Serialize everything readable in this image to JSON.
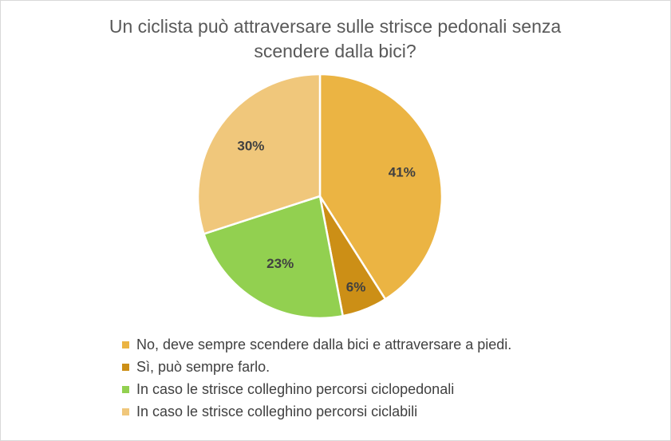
{
  "chart_data": {
    "type": "pie",
    "title_lines": [
      "Un ciclista può attraversare sulle strisce pedonali senza",
      "scendere dalla bici?"
    ],
    "slices": [
      {
        "label": "No, deve sempre scendere dalla bici e attraversare a piedi.",
        "value": 41,
        "display": "41%",
        "color": "#EBB443"
      },
      {
        "label": "Sì, può sempre farlo.",
        "value": 6,
        "display": "6%",
        "color": "#CC8F16"
      },
      {
        "label": "In caso le strisce colleghino percorsi ciclopedonali",
        "value": 23,
        "display": "23%",
        "color": "#92D050"
      },
      {
        "label": "In caso le strisce colleghino percorsi ciclabili",
        "value": 30,
        "display": "30%",
        "color": "#F0C77B"
      }
    ],
    "start_angle": "12 o'clock",
    "direction": "clockwise",
    "legend_position": "bottom"
  }
}
